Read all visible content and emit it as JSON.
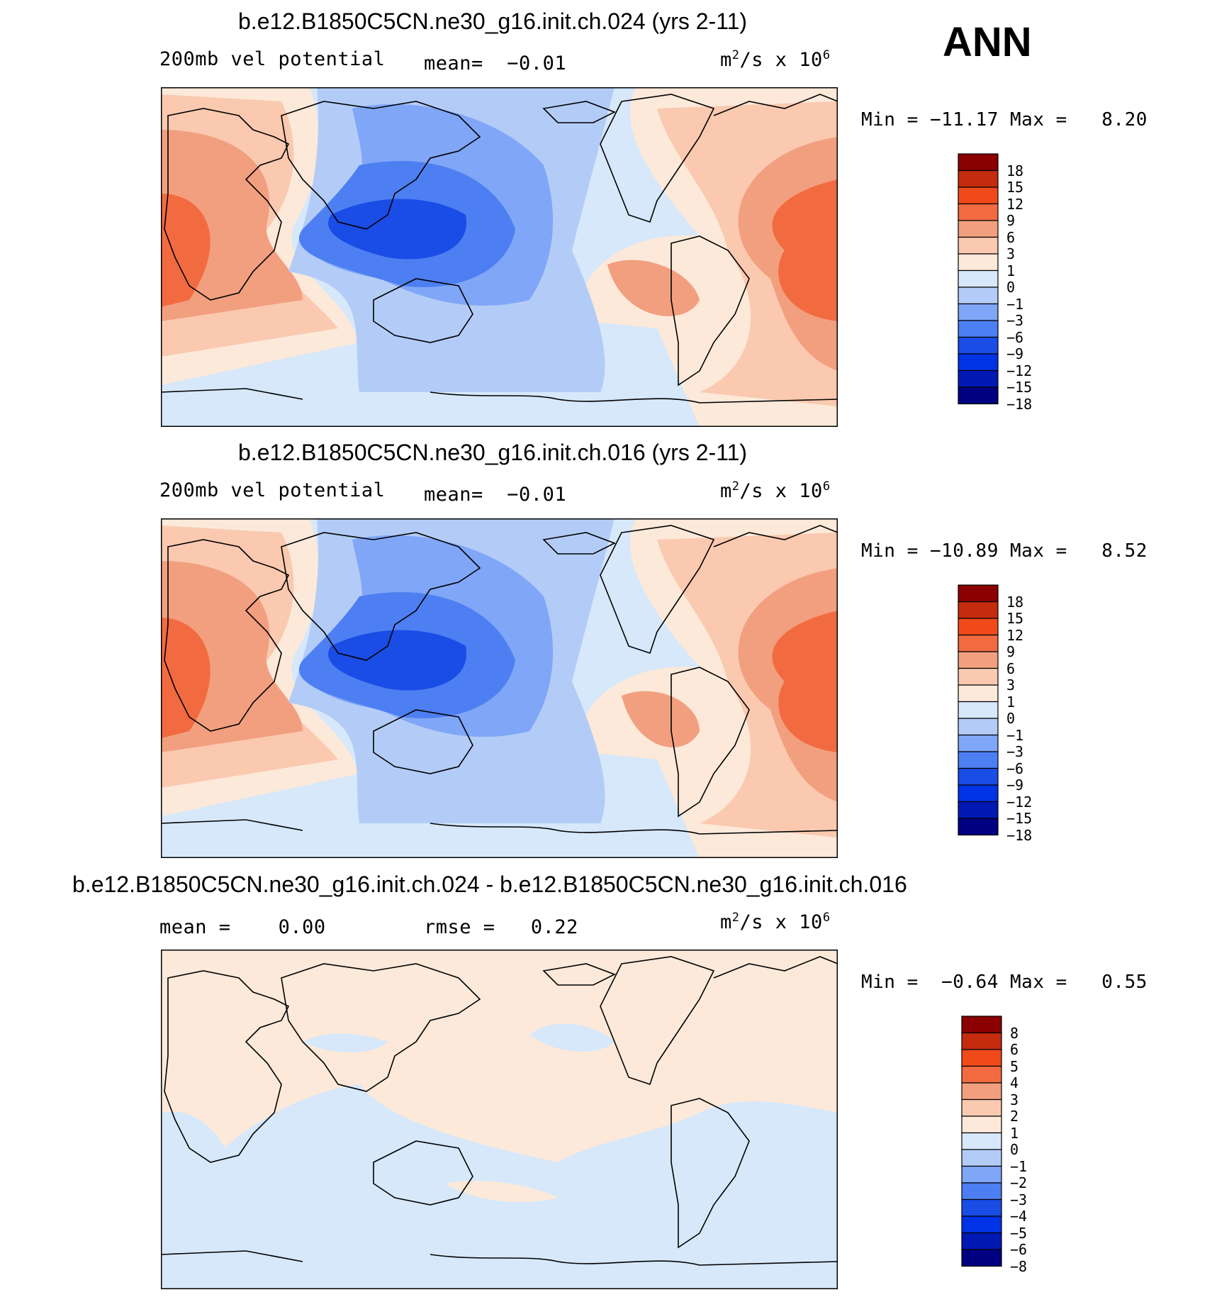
{
  "season": "ANN",
  "colors": {
    "levels_blue_to_red": [
      "#000080",
      "#0019b3",
      "#0033e6",
      "#1a4de6",
      "#4d7ff2",
      "#80a6f7",
      "#b3ccf7",
      "#d6e8fa",
      "#fce9d9",
      "#fac9b0",
      "#f29f80",
      "#f26b40",
      "#f04a1a",
      "#c42c0d",
      "#8b0000"
    ],
    "coast": "#000000"
  },
  "panels": [
    {
      "title": "b.e12.B1850C5CN.ne30_g16.init.ch.024 (yrs 2-11)",
      "left_label": "200mb vel potential",
      "mean_label": "mean=",
      "mean_value": "−0.01",
      "units": "m",
      "units_sup": "2",
      "units_mid": "/s x 10",
      "units_sup2": "6",
      "min_label": "Min =",
      "min_value": "−11.17",
      "max_label": "Max =",
      "max_value": "8.20",
      "colorbar_labels": [
        "18",
        "15",
        "12",
        "9",
        "6",
        "3",
        "1",
        "0",
        "−1",
        "−3",
        "−6",
        "−9",
        "−12",
        "−15",
        "−18"
      ]
    },
    {
      "title": "b.e12.B1850C5CN.ne30_g16.init.ch.016 (yrs 2-11)",
      "left_label": "200mb vel potential",
      "mean_label": "mean=",
      "mean_value": "−0.01",
      "units": "m",
      "units_sup": "2",
      "units_mid": "/s x 10",
      "units_sup2": "6",
      "min_label": "Min =",
      "min_value": "−10.89",
      "max_label": "Max =",
      "max_value": "8.52",
      "colorbar_labels": [
        "18",
        "15",
        "12",
        "9",
        "6",
        "3",
        "1",
        "0",
        "−1",
        "−3",
        "−6",
        "−9",
        "−12",
        "−15",
        "−18"
      ]
    },
    {
      "title": "b.e12.B1850C5CN.ne30_g16.init.ch.024 - b.e12.B1850C5CN.ne30_g16.init.ch.016",
      "mean_label": "mean =",
      "mean_value": "0.00",
      "rmse_label": "rmse =",
      "rmse_value": "0.22",
      "units": "m",
      "units_sup": "2",
      "units_mid": "/s x 10",
      "units_sup2": "6",
      "min_label": "Min =",
      "min_value": "−0.64",
      "max_label": "Max =",
      "max_value": "0.55",
      "colorbar_labels": [
        "8",
        "6",
        "5",
        "4",
        "3",
        "2",
        "1",
        "0",
        "−1",
        "−2",
        "−3",
        "−4",
        "−5",
        "−6",
        "−8"
      ]
    }
  ],
  "chart_data": [
    {
      "type": "heatmap",
      "title": "b.e12.B1850C5CN.ne30_g16.init.ch.024 (yrs 2-11)",
      "variable": "200mb vel potential",
      "units": "m2/s x 10^6",
      "mean": -0.01,
      "min": -11.17,
      "max": 8.2,
      "contour_levels": [
        -18,
        -15,
        -12,
        -9,
        -6,
        -3,
        -1,
        0,
        1,
        3,
        6,
        9,
        12,
        15,
        18
      ],
      "map_projection": "cylindrical equidistant, Pacific-centered",
      "features": [
        "min near Maritime Continent/Western Pacific (~ -11)",
        "positive over Africa and Atlantic (~ +6 to +9)",
        "positive over eastern Pacific off South America (~ +6)"
      ]
    },
    {
      "type": "heatmap",
      "title": "b.e12.B1850C5CN.ne30_g16.init.ch.016 (yrs 2-11)",
      "variable": "200mb vel potential",
      "units": "m2/s x 10^6",
      "mean": -0.01,
      "min": -10.89,
      "max": 8.52,
      "contour_levels": [
        -18,
        -15,
        -12,
        -9,
        -6,
        -3,
        -1,
        0,
        1,
        3,
        6,
        9,
        12,
        15,
        18
      ],
      "map_projection": "cylindrical equidistant, Pacific-centered",
      "features": [
        "min near Maritime Continent/Western Pacific (~ -11)",
        "positive over Africa and Atlantic (~ +6 to +9)"
      ]
    },
    {
      "type": "heatmap",
      "title": "b.e12.B1850C5CN.ne30_g16.init.ch.024 - b.e12.B1850C5CN.ne30_g16.init.ch.016",
      "units": "m2/s x 10^6",
      "mean": 0.0,
      "rmse": 0.22,
      "min": -0.64,
      "max": 0.55,
      "contour_levels": [
        -8,
        -6,
        -5,
        -4,
        -3,
        -2,
        -1,
        0,
        1,
        2,
        3,
        4,
        5,
        6,
        8
      ],
      "map_projection": "cylindrical equidistant, Pacific-centered",
      "features": [
        "differences within -1..1 everywhere",
        "slightly positive in northern hemisphere/Pacific",
        "slightly negative in southern hemisphere and Indian Ocean"
      ]
    }
  ]
}
